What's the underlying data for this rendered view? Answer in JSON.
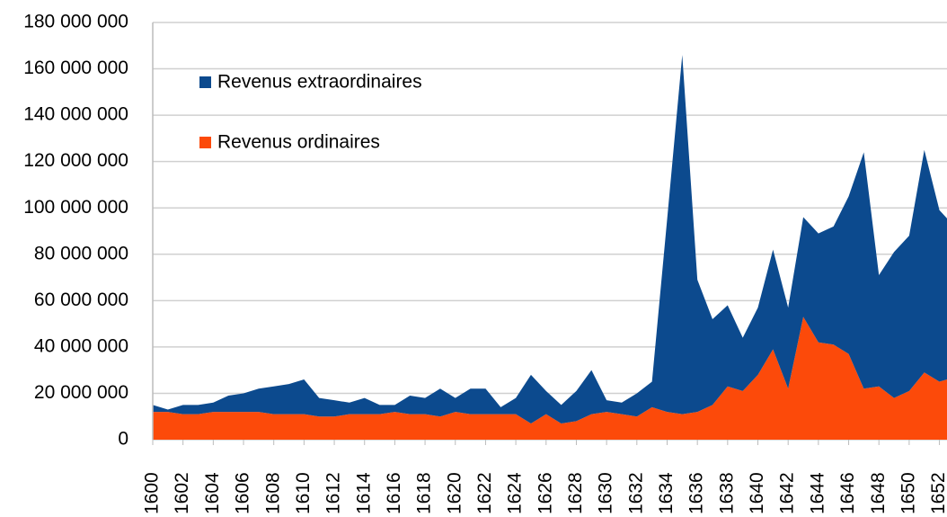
{
  "chart_data": {
    "type": "stacked_area",
    "x": [
      1600,
      1601,
      1602,
      1603,
      1604,
      1605,
      1606,
      1607,
      1608,
      1609,
      1610,
      1611,
      1612,
      1613,
      1614,
      1615,
      1616,
      1617,
      1618,
      1619,
      1620,
      1621,
      1622,
      1623,
      1624,
      1625,
      1626,
      1627,
      1628,
      1629,
      1630,
      1631,
      1632,
      1633,
      1634,
      1635,
      1636,
      1637,
      1638,
      1639,
      1640,
      1641,
      1642,
      1643,
      1644,
      1645,
      1646,
      1647,
      1648,
      1649,
      1650,
      1651,
      1652,
      1653
    ],
    "xlim": [
      1600,
      1652.5
    ],
    "xticks": [
      1600,
      1602,
      1604,
      1606,
      1608,
      1610,
      1612,
      1614,
      1616,
      1618,
      1620,
      1622,
      1624,
      1626,
      1628,
      1630,
      1632,
      1634,
      1636,
      1638,
      1640,
      1642,
      1644,
      1646,
      1648,
      1650,
      1652
    ],
    "ylim": [
      0,
      180000000
    ],
    "yticks": [
      {
        "value": 0,
        "label": "0"
      },
      {
        "value": 20000000,
        "label": "20 000 000"
      },
      {
        "value": 40000000,
        "label": "40 000 000"
      },
      {
        "value": 60000000,
        "label": "60 000 000"
      },
      {
        "value": 80000000,
        "label": "80 000 000"
      },
      {
        "value": 100000000,
        "label": "100 000 000"
      },
      {
        "value": 120000000,
        "label": "120 000 000"
      },
      {
        "value": 140000000,
        "label": "140 000 000"
      },
      {
        "value": 160000000,
        "label": "160 000 000"
      },
      {
        "value": 180000000,
        "label": "180 000 000"
      }
    ],
    "grid": true,
    "legend": "upper left",
    "series": [
      {
        "name": "Revenus ordinaires",
        "color": "#fc4a0a",
        "values": [
          12000000,
          12000000,
          11000000,
          11000000,
          12000000,
          12000000,
          12000000,
          12000000,
          11000000,
          11000000,
          11000000,
          10000000,
          10000000,
          11000000,
          11000000,
          11000000,
          12000000,
          11000000,
          11000000,
          10000000,
          12000000,
          11000000,
          11000000,
          11000000,
          11000000,
          7000000,
          11000000,
          7000000,
          8000000,
          11000000,
          12000000,
          11000000,
          10000000,
          14000000,
          12000000,
          11000000,
          12000000,
          15000000,
          23000000,
          21000000,
          28000000,
          39000000,
          22000000,
          53000000,
          42000000,
          41000000,
          37000000,
          22000000,
          23000000,
          18000000,
          21000000,
          29000000,
          25000000,
          27000000
        ]
      },
      {
        "name": "Revenus extraordinaires",
        "color": "#0c4a8e",
        "values": [
          3000000,
          1000000,
          4000000,
          4000000,
          4000000,
          7000000,
          8000000,
          10000000,
          12000000,
          13000000,
          15000000,
          8000000,
          7000000,
          5000000,
          7000000,
          4000000,
          3000000,
          8000000,
          7000000,
          12000000,
          6000000,
          11000000,
          11000000,
          3000000,
          7000000,
          21000000,
          10000000,
          8000000,
          13000000,
          19000000,
          5000000,
          5000000,
          10000000,
          11000000,
          83000000,
          155000000,
          57000000,
          37000000,
          35000000,
          23000000,
          29000000,
          43000000,
          35000000,
          43000000,
          47000000,
          51000000,
          68000000,
          102000000,
          48000000,
          63000000,
          67000000,
          96000000,
          74000000,
          65000000
        ]
      }
    ]
  }
}
